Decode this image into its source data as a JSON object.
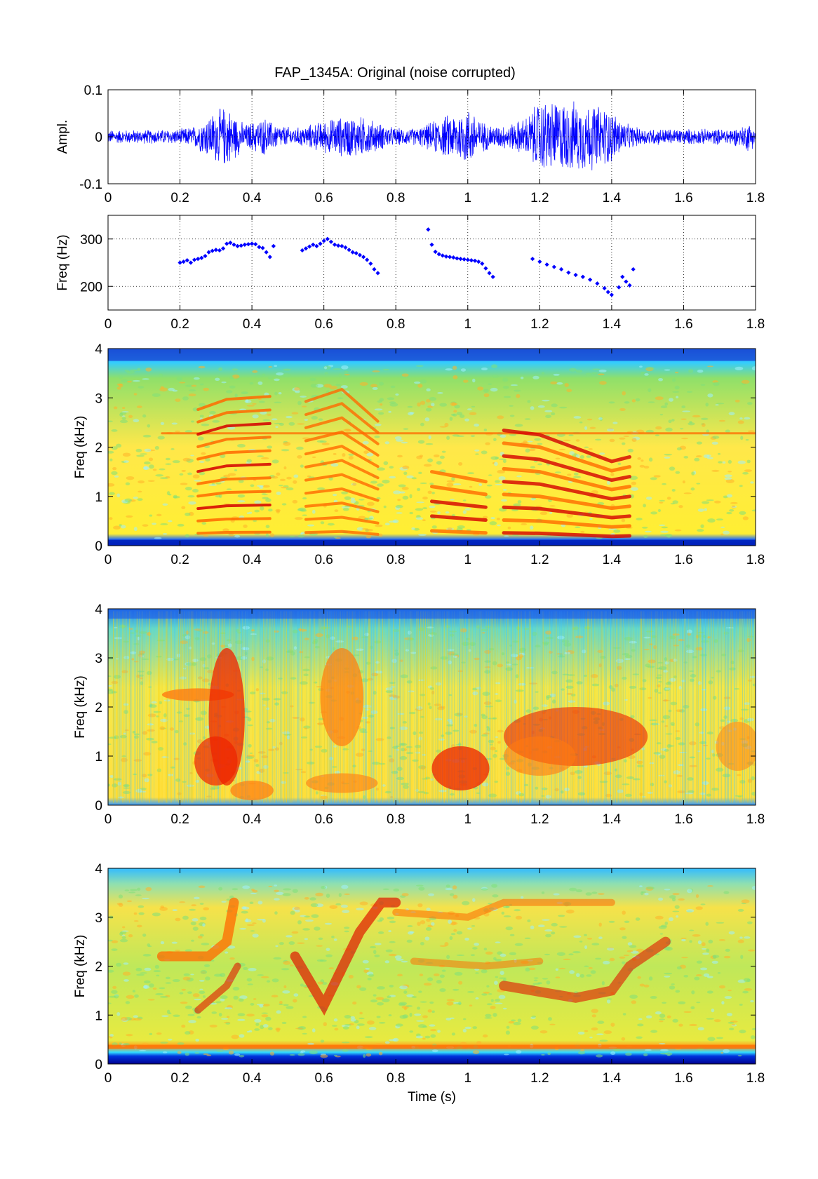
{
  "figure": {
    "title": "FAP_1345A: Original (noise corrupted)"
  },
  "chart_data": [
    {
      "type": "line",
      "panel": "waveform",
      "title": "FAP_1345A: Original (noise corrupted)",
      "xlabel": "",
      "ylabel": "Ampl.",
      "xlim": [
        0,
        1.8
      ],
      "ylim": [
        -0.1,
        0.1
      ],
      "xticks": [
        "0",
        "0.2",
        "0.4",
        "0.6",
        "0.8",
        "1",
        "1.2",
        "1.4",
        "1.6",
        "1.8"
      ],
      "yticks": [
        "-0.1",
        "0",
        "0.1"
      ],
      "grid": true,
      "color": "#0000ff",
      "envelope": {
        "x": [
          0,
          0.1,
          0.2,
          0.24,
          0.28,
          0.3,
          0.33,
          0.36,
          0.38,
          0.4,
          0.44,
          0.46,
          0.52,
          0.56,
          0.6,
          0.64,
          0.68,
          0.72,
          0.76,
          0.8,
          0.86,
          0.9,
          0.94,
          0.98,
          1.0,
          1.02,
          1.04,
          1.06,
          1.08,
          1.12,
          1.16,
          1.2,
          1.24,
          1.28,
          1.32,
          1.36,
          1.4,
          1.44,
          1.48,
          1.6,
          1.7,
          1.76,
          1.78,
          1.8
        ],
        "amplitude": [
          0.016,
          0.016,
          0.018,
          0.025,
          0.05,
          0.06,
          0.072,
          0.045,
          0.028,
          0.035,
          0.045,
          0.03,
          0.02,
          0.028,
          0.038,
          0.045,
          0.05,
          0.044,
          0.03,
          0.02,
          0.02,
          0.035,
          0.05,
          0.06,
          0.068,
          0.058,
          0.035,
          0.03,
          0.026,
          0.03,
          0.045,
          0.085,
          0.085,
          0.082,
          0.08,
          0.075,
          0.062,
          0.03,
          0.02,
          0.018,
          0.018,
          0.022,
          0.035,
          0.02
        ]
      }
    },
    {
      "type": "scatter",
      "panel": "pitch",
      "xlabel": "",
      "ylabel": "Freq (Hz)",
      "xlim": [
        0,
        1.8
      ],
      "ylim": [
        150,
        350
      ],
      "xticks": [
        "0",
        "0.2",
        "0.4",
        "0.6",
        "0.8",
        "1",
        "1.2",
        "1.4",
        "1.6",
        "1.8"
      ],
      "yticks": [
        "200",
        "300"
      ],
      "grid": true,
      "color": "#0000ff",
      "segments": [
        {
          "x": [
            0.2,
            0.21,
            0.22,
            0.23,
            0.24,
            0.25,
            0.26,
            0.27,
            0.28,
            0.29,
            0.3,
            0.31,
            0.32,
            0.33,
            0.34,
            0.35,
            0.36,
            0.37,
            0.38,
            0.39,
            0.4,
            0.41,
            0.42,
            0.43,
            0.44,
            0.45,
            0.46
          ],
          "y": [
            250,
            252,
            255,
            250,
            256,
            258,
            260,
            264,
            272,
            275,
            277,
            276,
            280,
            290,
            292,
            288,
            285,
            286,
            288,
            289,
            290,
            289,
            283,
            281,
            272,
            262,
            285
          ]
        },
        {
          "x": [
            0.54,
            0.55,
            0.56,
            0.57,
            0.58,
            0.59,
            0.6,
            0.61,
            0.62,
            0.63,
            0.64,
            0.65,
            0.66,
            0.67,
            0.68,
            0.69,
            0.7,
            0.71,
            0.72,
            0.73,
            0.74,
            0.75
          ],
          "y": [
            276,
            280,
            284,
            288,
            285,
            290,
            296,
            300,
            294,
            288,
            286,
            285,
            282,
            277,
            272,
            270,
            266,
            262,
            256,
            248,
            236,
            228
          ]
        },
        {
          "x": [
            0.89,
            0.9,
            0.91,
            0.92,
            0.93,
            0.94,
            0.95,
            0.96,
            0.97,
            0.98,
            0.99,
            1.0,
            1.01,
            1.02,
            1.03,
            1.04,
            1.05,
            1.06,
            1.07
          ],
          "y": [
            320,
            288,
            273,
            268,
            265,
            263,
            262,
            261,
            259,
            258,
            257,
            256,
            255,
            254,
            252,
            248,
            238,
            228,
            220
          ]
        },
        {
          "x": [
            1.18,
            1.2,
            1.22,
            1.24,
            1.26,
            1.28,
            1.3,
            1.32,
            1.34,
            1.36,
            1.38,
            1.39,
            1.4,
            1.42,
            1.43,
            1.44,
            1.45,
            1.46
          ],
          "y": [
            258,
            252,
            246,
            241,
            236,
            229,
            224,
            220,
            214,
            206,
            196,
            188,
            182,
            198,
            220,
            210,
            202,
            236
          ]
        }
      ]
    },
    {
      "type": "heatmap",
      "panel": "spectrogram-1",
      "xlabel": "",
      "ylabel": "Freq (kHz)",
      "xlim": [
        0,
        1.8
      ],
      "ylim": [
        0,
        4
      ],
      "xticks": [
        "0",
        "0.2",
        "0.4",
        "0.6",
        "0.8",
        "1",
        "1.2",
        "1.4",
        "1.6",
        "1.8"
      ],
      "yticks": [
        "0",
        "1",
        "2",
        "3",
        "4"
      ],
      "colormap": "jet"
    },
    {
      "type": "heatmap",
      "panel": "spectrogram-2",
      "xlabel": "",
      "ylabel": "Freq (kHz)",
      "xlim": [
        0,
        1.8
      ],
      "ylim": [
        0,
        4
      ],
      "xticks": [
        "0",
        "0.2",
        "0.4",
        "0.6",
        "0.8",
        "1",
        "1.2",
        "1.4",
        "1.6",
        "1.8"
      ],
      "yticks": [
        "0",
        "1",
        "2",
        "3",
        "4"
      ],
      "colormap": "jet"
    },
    {
      "type": "heatmap",
      "panel": "spectrogram-3",
      "xlabel": "Time (s)",
      "ylabel": "Freq (kHz)",
      "xlim": [
        0,
        1.8
      ],
      "ylim": [
        0,
        4
      ],
      "xticks": [
        "0",
        "0.2",
        "0.4",
        "0.6",
        "0.8",
        "1",
        "1.2",
        "1.4",
        "1.6",
        "1.8"
      ],
      "yticks": [
        "0",
        "1",
        "2",
        "3",
        "4"
      ],
      "colormap": "jet"
    }
  ]
}
